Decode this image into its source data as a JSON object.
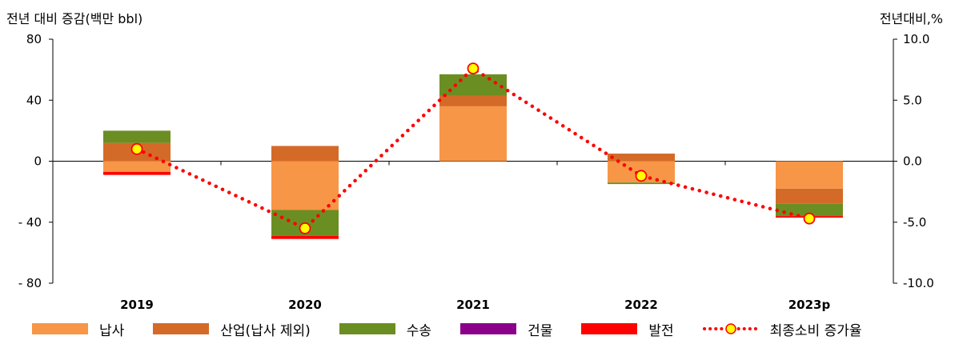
{
  "chart_data": {
    "type": "bar",
    "stacked": true,
    "categories": [
      "2019",
      "2020",
      "2021",
      "2022",
      "2023p"
    ],
    "ylabel": "전년 대비 증감(백만 bbl)",
    "y2label": "전년대비,%",
    "ylim": [
      -80,
      80
    ],
    "yticks": [
      "80",
      "40",
      "0",
      "- 40",
      "- 80"
    ],
    "y2lim": [
      -10,
      10
    ],
    "y2ticks": [
      "10.0",
      "5.0",
      "0.0",
      "-5.0",
      "-10.0"
    ],
    "series": [
      {
        "name": "납사",
        "color": "#F79646",
        "values": [
          -7,
          -32,
          36,
          -14,
          -18
        ]
      },
      {
        "name": "산업(납사 제외)",
        "color": "#D46A28",
        "values": [
          12,
          10,
          7,
          5,
          -10
        ]
      },
      {
        "name": "수송",
        "color": "#6B8E23",
        "values": [
          8,
          -17,
          14,
          -1,
          -8
        ]
      },
      {
        "name": "건물",
        "color": "#8B008B",
        "values": [
          0,
          0,
          0,
          0,
          0
        ]
      },
      {
        "name": "발전",
        "color": "#FF0000",
        "values": [
          -2,
          -2,
          0,
          0,
          -1
        ]
      }
    ],
    "line_series": {
      "name": "최종소비 증가율",
      "color": "#FF0000",
      "marker_fill": "#FFFF00",
      "values": [
        1.0,
        -5.5,
        7.6,
        -1.2,
        -4.7
      ]
    },
    "legend_position": "bottom"
  }
}
